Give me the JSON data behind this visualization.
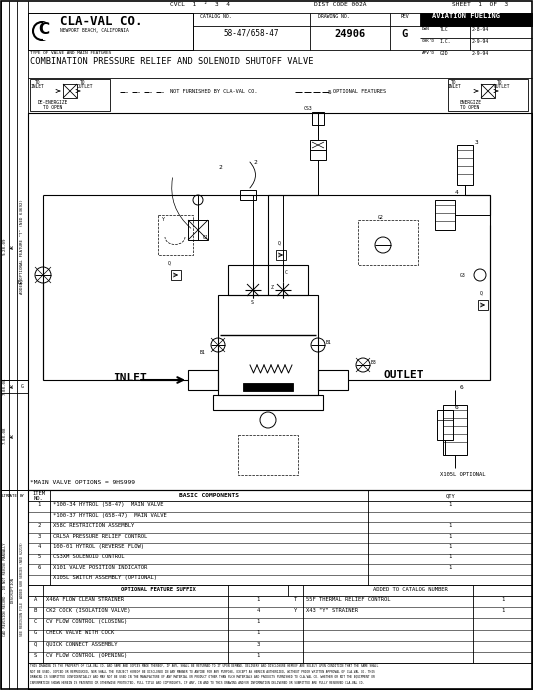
{
  "bg_color": "#ffffff",
  "title": "COMBINATION PRESSURE RELIEF AND SOLENOID SHUTOFF VALVE",
  "catalog_no": "58-47/658-47",
  "drawing_no": "24906",
  "rev": "G",
  "sheet": "SHEET  1  OF  3",
  "cvcl": "CVCL  1  ²  3  4",
  "dist_code": "DIST CODE 002A",
  "aviation": "AVIATION FUELING",
  "main_valve_options": "*MAIN VALVE OPTIONS = 9HS999",
  "x105l": "X105L OPTIONAL",
  "inlet_label": "INLET",
  "outlet_label": "OUTLET",
  "not_furnished": "NOT FURNISHED BY CLA-VAL CO.",
  "optional_features": "OPTIONAL FEATURES",
  "basic_components_title": "BASIC COMPONENTS",
  "basic_components": [
    [
      "1",
      "*100-34 HYTROL (58-47)  MAIN VALVE",
      "1"
    ],
    [
      "",
      "*100-37 HYTROL (658-47)  MAIN VALVE",
      ""
    ],
    [
      "2",
      "X58C RESTRICTION ASSEMBLY",
      "1"
    ],
    [
      "3",
      "CRL5A PRESSURE RELIEF CONTROL",
      "1"
    ],
    [
      "4",
      "100-01 HYTROL (REVERSE FLOW)",
      "1"
    ],
    [
      "5",
      "CS3XM SOLENOID CONTROL",
      "1"
    ],
    [
      "6",
      "X101 VALVE POSITION INDICATOR",
      "1"
    ],
    [
      "",
      "X105L SWITCH ASSEMBLY (OPTIONAL)",
      ""
    ]
  ],
  "optional_suffix_title": "OPTIONAL FEATURE SUFFIX",
  "optional_suffix_added": "ADDED TO CATALOG NUMBER",
  "optional_features_list": [
    [
      "A",
      "X46A FLOW CLEAN STRAINER",
      "1",
      "T",
      "55F THERMAL RELIEF CONTROL",
      "1"
    ],
    [
      "B",
      "CK2 COCK (ISOLATION VALVE)",
      "4",
      "Y",
      "X43 \"Y\" STRAINER",
      "1"
    ],
    [
      "C",
      "CV FLOW CONTROL (CLOSING)",
      "1",
      "",
      "",
      ""
    ],
    [
      "G",
      "CHECK VALVE WITH COCK",
      "1",
      "",
      "",
      ""
    ],
    [
      "Q",
      "QUICK CONNECT ASSEMBLY",
      "3",
      "",
      "",
      ""
    ],
    [
      "S",
      "CV FLOW CONTROL (OPENING)",
      "1",
      "",
      "",
      ""
    ]
  ],
  "disc_lines": [
    "THIS DRAWING IS THE PROPERTY OF CLA-VAL CO. AND SAME AND COPIES MADE THEREOF, IF ANY, SHALL BE RETURNED TO IT UPON DEMAND. DELIVERY AND DISCLOSURE HEREOF ARE SOLELY UPON CONDITION THAT THE SAME SHALL",
    "NOT BE USED, COPIED OR REPRODUCED, NOR SHALL THE SUBJECT HEREOF BE DISCLOSED IN ANY MANNER TO ANYONE FOR ANY PURPOSE, EXCEPT AS HEREIN AUTHORIZED, WITHOUT PRIOR WRITTEN APPROVAL OF CLA-VAL CO. THIS",
    "DRAWING IS SUBMITTED CONFIDENTIALLY AND MAY NOT BE USED IN THE MANUFACTURE OF ANY MATERIAL OR PRODUCT OTHER THAN SUCH MATERIALS AND PRODUCTS FURNISHED TO CLA-VAL CO. WHETHER OR NOT THE EQUIPMENT OR",
    "INFORMATION SHOWN HEREIN IS PATENTED OR OTHERWISE PROTECTED, FULL TITLE AND COPYRIGHTS, IF ANY, IN AND TO THIS DRAWING AND/OR INFORMATION DELIVERED OR SUBMITTED ARE FULLY RESERVED CLA-VAL CO."
  ]
}
